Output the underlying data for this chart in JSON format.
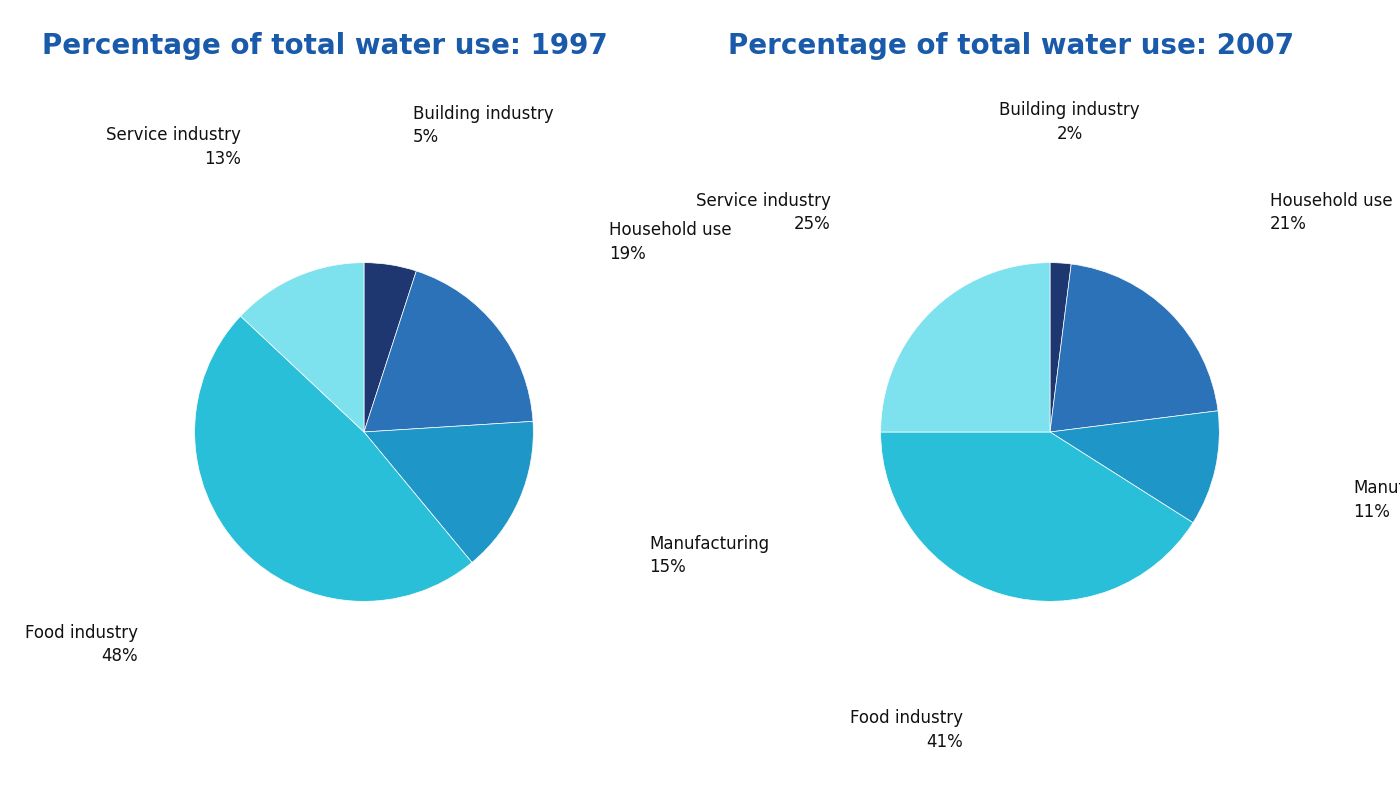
{
  "title_1997": "Percentage of total water use: 1997",
  "title_2007": "Percentage of total water use: 2007",
  "title_color": "#1a5aaa",
  "title_fontsize": 20,
  "background_color": "#ffffff",
  "label_color": "#111111",
  "label_fontsize": 12,
  "chart_1997": {
    "labels": [
      "Building industry",
      "Household use",
      "Manufacturing",
      "Food industry",
      "Service industry"
    ],
    "values": [
      5,
      19,
      15,
      48,
      13
    ],
    "colors": [
      "#1e3770",
      "#2b72b8",
      "#1e96c8",
      "#29bfd8",
      "#7de2ee"
    ],
    "startangle": 90
  },
  "chart_2007": {
    "labels": [
      "Building industry",
      "Household use",
      "Manufacturing",
      "Food industry",
      "Service industry"
    ],
    "values": [
      2,
      21,
      11,
      41,
      25
    ],
    "colors": [
      "#1e3770",
      "#2b72b8",
      "#1e96c8",
      "#29bfd8",
      "#7de2ee"
    ],
    "startangle": 90
  }
}
